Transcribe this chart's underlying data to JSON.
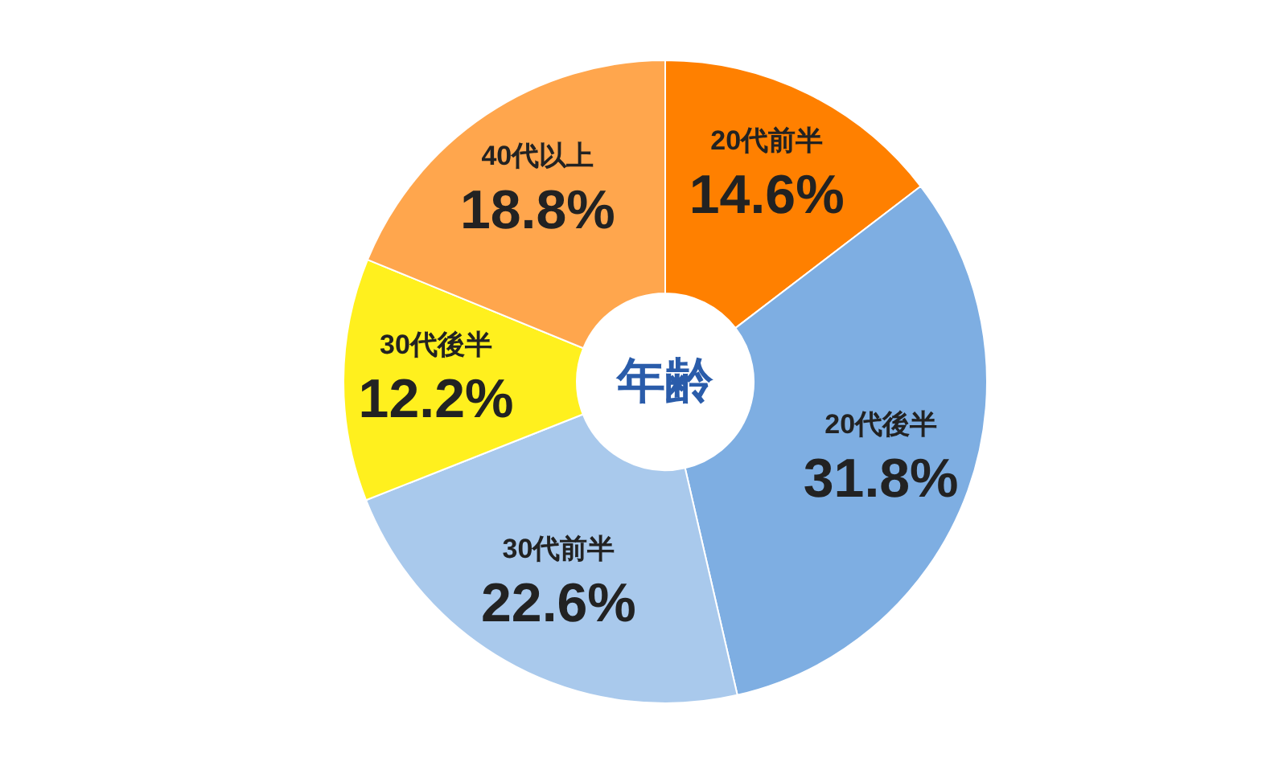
{
  "chart_data": {
    "type": "donut",
    "title": "年齢",
    "categories": [
      "20代前半",
      "20代後半",
      "30代前半",
      "30代後半",
      "40代以上"
    ],
    "values": [
      14.6,
      31.8,
      22.6,
      12.2,
      18.8
    ],
    "value_labels": [
      "14.6%",
      "31.8%",
      "22.6%",
      "12.2%",
      "18.8%"
    ],
    "colors": [
      "#ff8000",
      "#7eaee2",
      "#a9c9ec",
      "#fff01e",
      "#ffa64d"
    ]
  }
}
